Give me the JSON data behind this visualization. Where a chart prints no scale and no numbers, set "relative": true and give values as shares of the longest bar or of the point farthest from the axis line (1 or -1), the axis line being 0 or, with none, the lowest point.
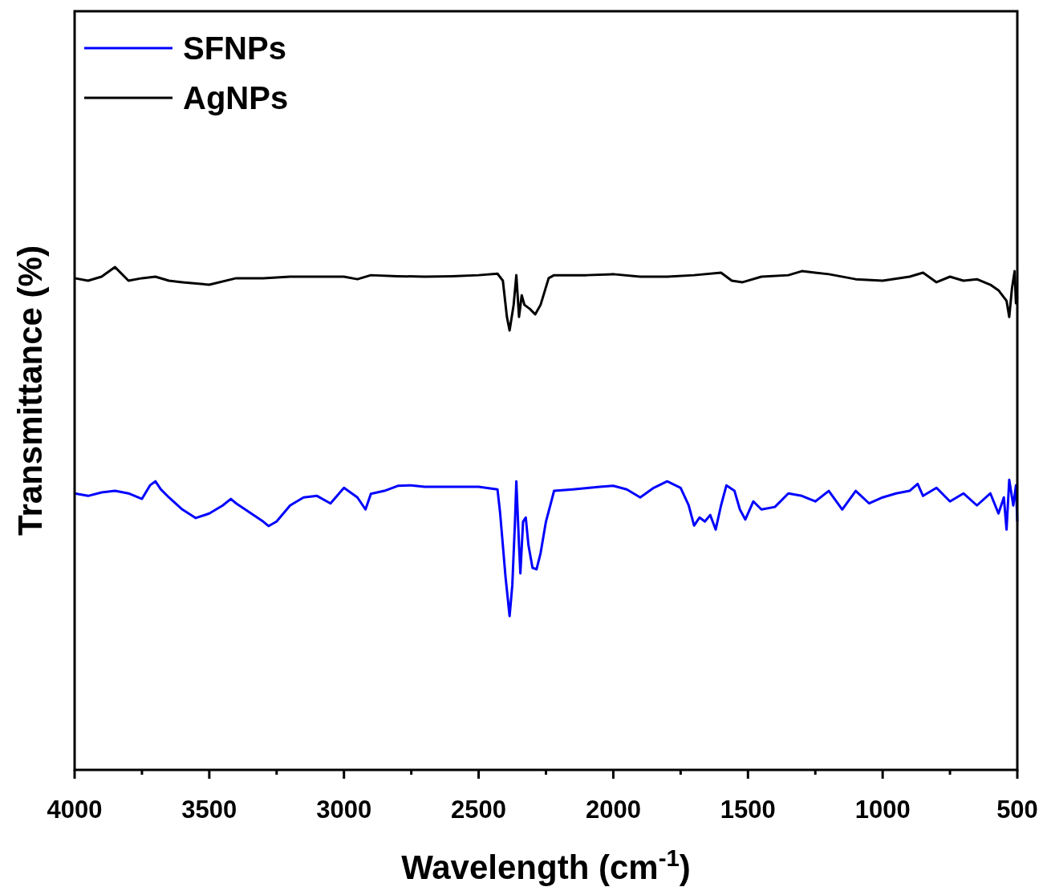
{
  "chart_data": {
    "type": "line",
    "relative": true,
    "xlabel": "Wavelength (cm$^{-1}$)",
    "ylabel": "Transmittance (%)",
    "xlim": [
      4000,
      500
    ],
    "xticks": [
      4000,
      {
        "value": 3750,
        "label": null
      },
      3500,
      {
        "value": 3250,
        "label": null
      },
      3000,
      {
        "value": 2750,
        "label": null
      },
      2500,
      {
        "value": 2250,
        "label": null
      },
      2000,
      {
        "value": 1750,
        "label": null
      },
      1500,
      {
        "value": 1250,
        "label": null
      },
      1000,
      {
        "value": 750,
        "label": null
      },
      500
    ],
    "legend": "top left",
    "grid": false,
    "line_style": "solid",
    "tick_labels": "x",
    "series": [
      {
        "name": "SFNPs",
        "color": "#0000ff",
        "x": [
          4000,
          3950,
          3900,
          3850,
          3800,
          3750,
          3720,
          3700,
          3680,
          3650,
          3600,
          3550,
          3500,
          3450,
          3420,
          3400,
          3300,
          3280,
          3250,
          3200,
          3150,
          3100,
          3050,
          3000,
          2950,
          2920,
          2900,
          2850,
          2800,
          2750,
          2700,
          2600,
          2500,
          2430,
          2420,
          2400,
          2385,
          2375,
          2365,
          2360,
          2350,
          2345,
          2335,
          2325,
          2315,
          2300,
          2285,
          2270,
          2250,
          2230,
          2220,
          2150,
          2050,
          2000,
          1950,
          1900,
          1850,
          1800,
          1750,
          1720,
          1700,
          1680,
          1660,
          1640,
          1620,
          1600,
          1580,
          1550,
          1530,
          1510,
          1480,
          1450,
          1400,
          1350,
          1300,
          1250,
          1200,
          1150,
          1100,
          1050,
          1000,
          950,
          900,
          870,
          850,
          800,
          750,
          700,
          650,
          600,
          570,
          550,
          540,
          530,
          515,
          505,
          500
        ],
        "values": [
          0.55,
          0.545,
          0.552,
          0.555,
          0.55,
          0.539,
          0.566,
          0.574,
          0.558,
          0.542,
          0.518,
          0.501,
          0.51,
          0.526,
          0.539,
          0.53,
          0.494,
          0.485,
          0.494,
          0.526,
          0.542,
          0.545,
          0.53,
          0.561,
          0.542,
          0.518,
          0.549,
          0.555,
          0.565,
          0.566,
          0.563,
          0.563,
          0.563,
          0.558,
          0.51,
          0.383,
          0.306,
          0.367,
          0.494,
          0.574,
          0.447,
          0.391,
          0.494,
          0.502,
          0.447,
          0.402,
          0.399,
          0.431,
          0.494,
          0.534,
          0.555,
          0.558,
          0.563,
          0.565,
          0.558,
          0.542,
          0.561,
          0.574,
          0.561,
          0.526,
          0.486,
          0.502,
          0.494,
          0.507,
          0.478,
          0.526,
          0.566,
          0.555,
          0.518,
          0.498,
          0.534,
          0.518,
          0.523,
          0.55,
          0.545,
          0.534,
          0.555,
          0.518,
          0.555,
          0.53,
          0.542,
          0.55,
          0.555,
          0.569,
          0.545,
          0.561,
          0.534,
          0.55,
          0.526,
          0.55,
          0.51,
          0.542,
          0.478,
          0.577,
          0.526,
          0.566,
          0.494
        ]
      },
      {
        "name": "AgNPs",
        "color": "#000000",
        "x": [
          4000,
          3950,
          3900,
          3850,
          3800,
          3750,
          3700,
          3650,
          3600,
          3500,
          3400,
          3300,
          3200,
          3100,
          3000,
          2950,
          2900,
          2800,
          2700,
          2600,
          2500,
          2430,
          2410,
          2395,
          2385,
          2370,
          2360,
          2350,
          2340,
          2330,
          2310,
          2290,
          2270,
          2240,
          2220,
          2100,
          2000,
          1900,
          1800,
          1700,
          1600,
          1560,
          1520,
          1450,
          1350,
          1300,
          1200,
          1100,
          1000,
          900,
          850,
          800,
          750,
          700,
          650,
          600,
          570,
          540,
          530,
          520,
          510,
          505,
          500
        ],
        "values": [
          0.978,
          0.973,
          0.981,
          1.0,
          0.973,
          0.978,
          0.981,
          0.973,
          0.97,
          0.965,
          0.978,
          0.978,
          0.981,
          0.981,
          0.981,
          0.976,
          0.984,
          0.982,
          0.981,
          0.982,
          0.984,
          0.987,
          0.973,
          0.901,
          0.874,
          0.925,
          0.984,
          0.901,
          0.944,
          0.925,
          0.917,
          0.906,
          0.925,
          0.978,
          0.984,
          0.984,
          0.986,
          0.981,
          0.981,
          0.984,
          0.989,
          0.973,
          0.97,
          0.981,
          0.984,
          0.992,
          0.986,
          0.976,
          0.973,
          0.981,
          0.989,
          0.97,
          0.981,
          0.973,
          0.976,
          0.965,
          0.954,
          0.933,
          0.901,
          0.957,
          0.992,
          0.928,
          0.941
        ]
      }
    ]
  }
}
